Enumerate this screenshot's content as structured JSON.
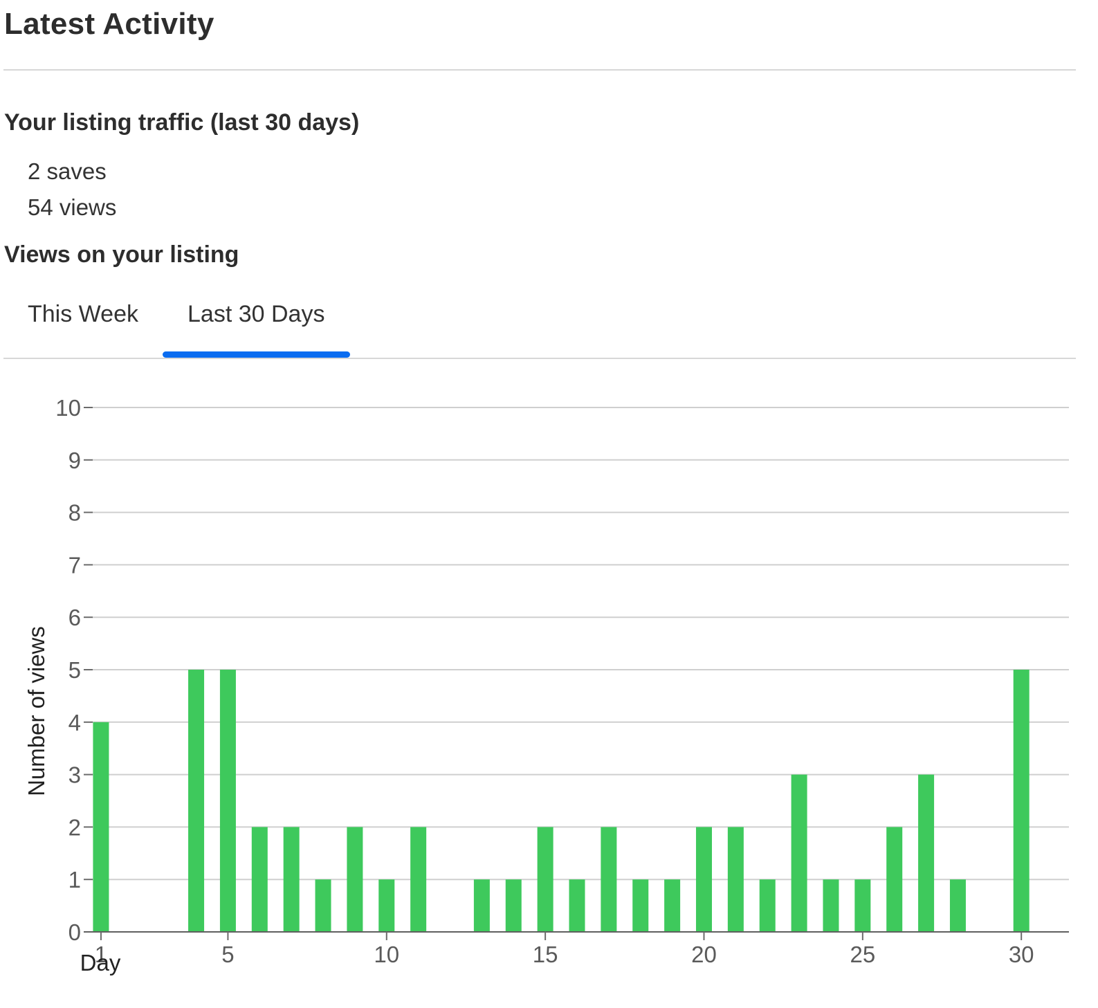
{
  "header": {
    "title": "Latest Activity"
  },
  "traffic": {
    "title": "Your listing traffic (last 30 days)",
    "saves": "2 saves",
    "views": "54 views"
  },
  "views_section": {
    "title": "Views on your listing",
    "tabs": [
      {
        "label": "This Week",
        "active": false
      },
      {
        "label": "Last 30 Days",
        "active": true
      }
    ]
  },
  "colors": {
    "bar": "#3ec95c",
    "tab_indicator": "#0a6cf0"
  },
  "chart_data": {
    "type": "bar",
    "title": "",
    "xlabel": "Day",
    "ylabel": "Number of views",
    "ylim": [
      0,
      10
    ],
    "yticks": [
      0,
      1,
      2,
      3,
      4,
      5,
      6,
      7,
      8,
      9,
      10
    ],
    "xticks": [
      1,
      5,
      10,
      15,
      20,
      25,
      30
    ],
    "xlim": [
      0.5,
      31.5
    ],
    "grid": true,
    "legend": "none",
    "x": [
      1,
      2,
      3,
      4,
      5,
      6,
      7,
      8,
      9,
      10,
      11,
      12,
      13,
      14,
      15,
      16,
      17,
      18,
      19,
      20,
      21,
      22,
      23,
      24,
      25,
      26,
      27,
      28,
      29,
      30
    ],
    "values": [
      4,
      0,
      0,
      5,
      5,
      2,
      2,
      1,
      2,
      1,
      2,
      0,
      1,
      1,
      2,
      1,
      2,
      1,
      1,
      2,
      2,
      1,
      3,
      1,
      1,
      2,
      3,
      1,
      0,
      5
    ]
  }
}
